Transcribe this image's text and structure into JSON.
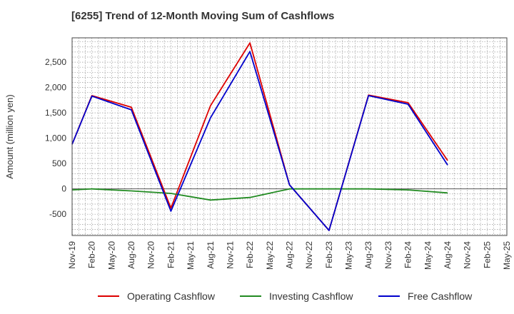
{
  "chart_data": {
    "type": "line",
    "title": "[6255]  Trend of 12-Month Moving Sum of Cashflows",
    "xlabel": "",
    "ylabel": "Amount (million yen)",
    "categories": [
      "Nov-19",
      "Feb-20",
      "May-20",
      "Aug-20",
      "Nov-20",
      "Feb-21",
      "May-21",
      "Aug-21",
      "Nov-21",
      "Feb-22",
      "May-22",
      "Aug-22",
      "Nov-22",
      "Feb-23",
      "May-23",
      "Aug-23",
      "Nov-23",
      "Feb-24",
      "May-24",
      "Aug-24",
      "Nov-24",
      "Feb-25",
      "May-25"
    ],
    "y_ticks": [
      -500,
      0,
      500,
      1000,
      1500,
      2000,
      2500
    ],
    "y_tick_labels": [
      "-500",
      "0",
      "500",
      "1,000",
      "1,500",
      "2,000",
      "2,500"
    ],
    "ylim": [
      -920,
      2980
    ],
    "grid": true,
    "legend_position": "bottom",
    "series": [
      {
        "name": "Operating Cashflow",
        "color": "#dd0000",
        "values": [
          880,
          1840,
          null,
          1610,
          null,
          -380,
          null,
          1640,
          null,
          2880,
          null,
          80,
          null,
          -820,
          null,
          1850,
          null,
          1700,
          null,
          560,
          null,
          null,
          null
        ]
      },
      {
        "name": "Investing Cashflow",
        "color": "#228b22",
        "values": [
          -20,
          0,
          null,
          -40,
          null,
          -90,
          null,
          -220,
          null,
          -170,
          null,
          0,
          null,
          0,
          null,
          0,
          null,
          -20,
          null,
          -80,
          null,
          null,
          null
        ]
      },
      {
        "name": "Free Cashflow",
        "color": "#0000cc",
        "values": [
          880,
          1830,
          null,
          1560,
          null,
          -440,
          null,
          1400,
          null,
          2710,
          null,
          80,
          null,
          -820,
          null,
          1840,
          null,
          1670,
          null,
          470,
          null,
          null,
          null
        ]
      }
    ]
  }
}
